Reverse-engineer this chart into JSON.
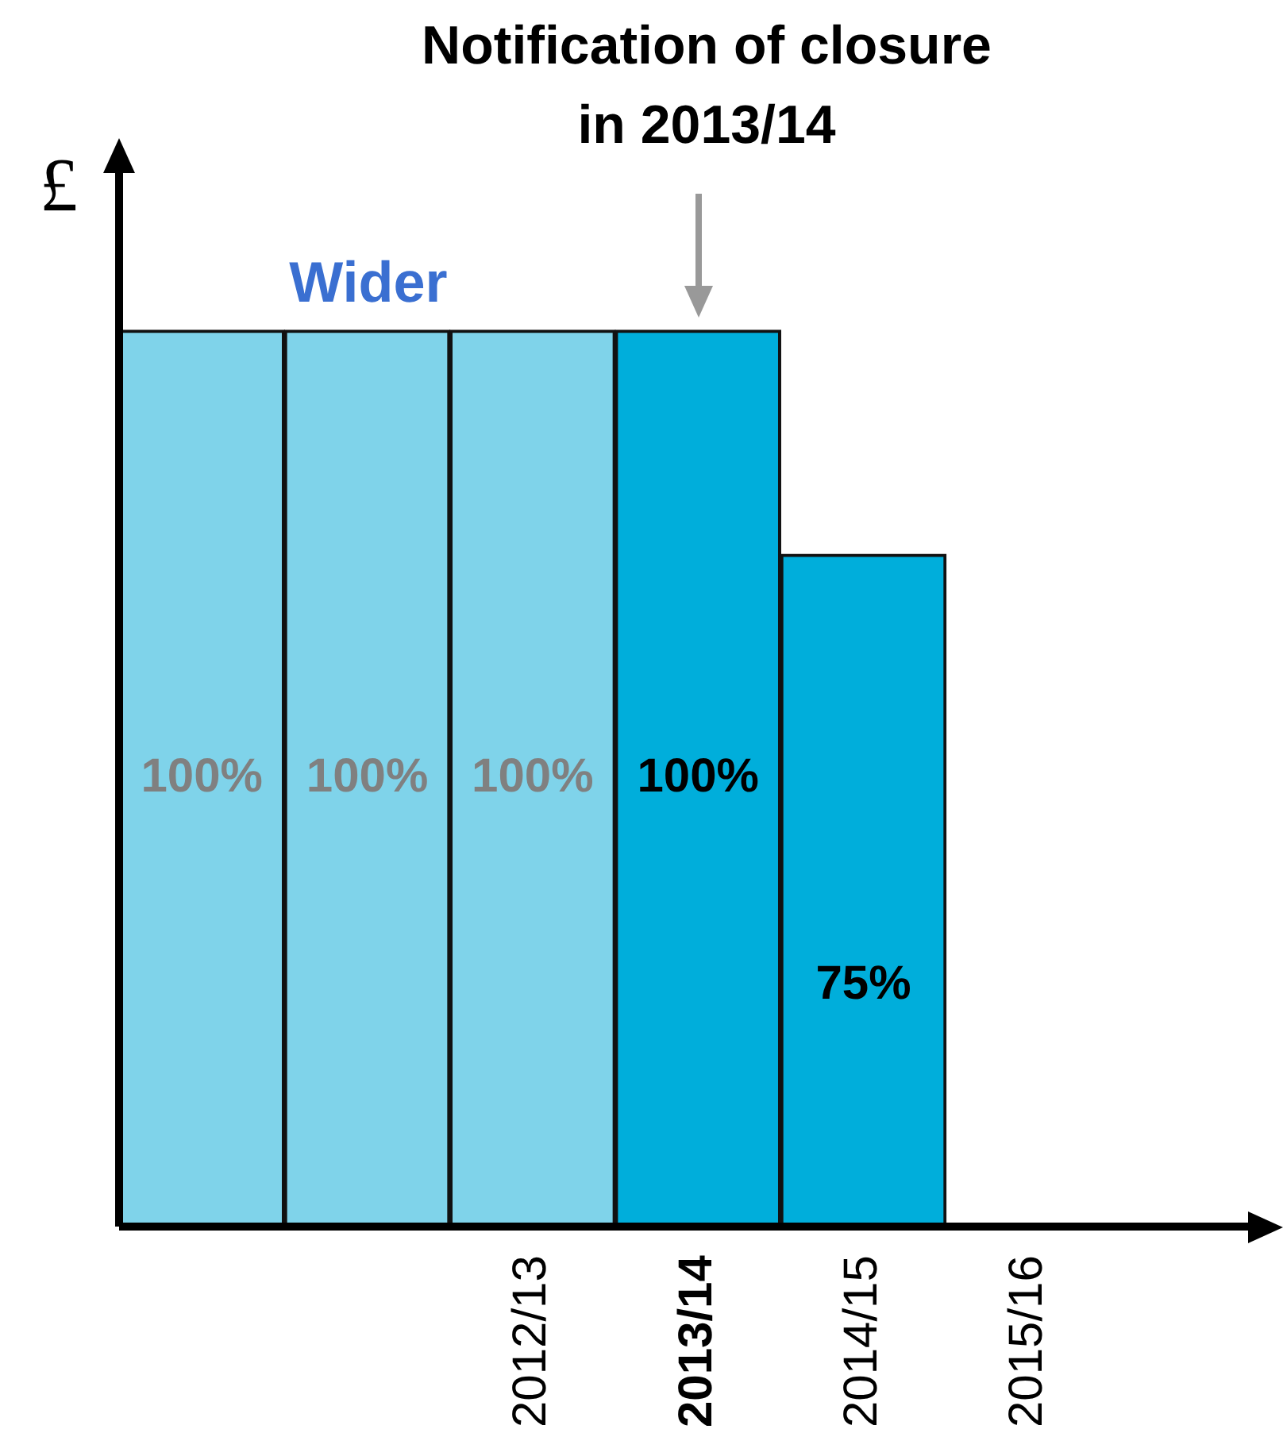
{
  "chart_data": {
    "type": "bar",
    "ylabel": "£",
    "categories": [
      null,
      null,
      "2012/13",
      "2013/14",
      "2014/15",
      "2015/16"
    ],
    "values": [
      100,
      100,
      100,
      100,
      75,
      null
    ],
    "colors": [
      "#7fd3ea",
      "#7fd3ea",
      "#7fd3ea",
      "#00aedb",
      "#00aedb",
      "#00aedb"
    ],
    "value_labels": [
      "100%",
      "100%",
      "100%",
      "100%",
      "75%",
      null
    ],
    "tick_labels": "x",
    "grid": false,
    "legend": false,
    "annotations": [
      "Notification of closure in 2013/14",
      "Wider"
    ]
  }
}
